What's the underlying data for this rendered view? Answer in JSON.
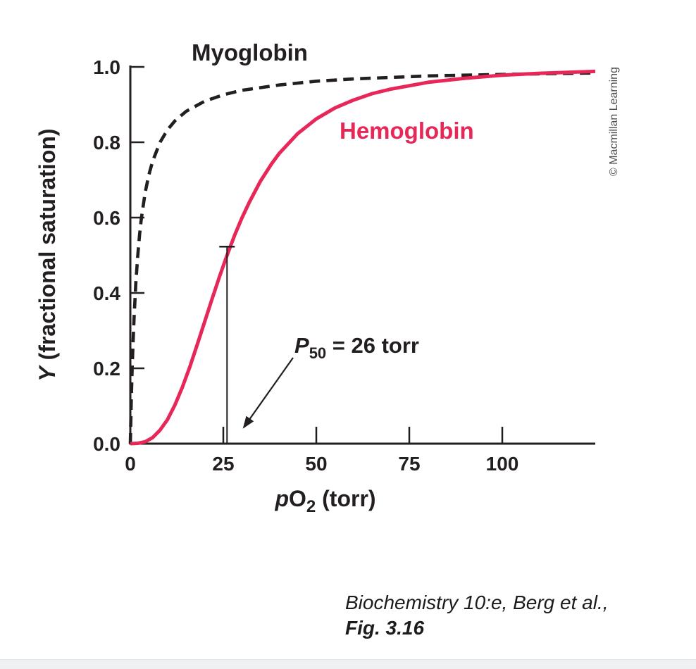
{
  "page": {
    "background": "#ffffff",
    "copyright": "© Macmillan Learning",
    "caption": {
      "line1": "Biochemistry 10:e, Berg et al.,",
      "line2": "Fig. 3.16"
    }
  },
  "labels": {
    "myoglobin": "Myoglobin",
    "hemoglobin": "Hemoglobin",
    "ylabel_italic": "Y",
    "ylabel_rest": " (fractional saturation)",
    "xlabel_italic": "p",
    "xlabel_main": "O",
    "xlabel_sub": "2",
    "xlabel_rest": " (torr)",
    "p50_italic": "P",
    "p50_sub": "50",
    "p50_rest": " = 26 torr"
  },
  "chart_data": {
    "type": "line",
    "xlabel": "pO2 (torr)",
    "ylabel": "Y (fractional saturation)",
    "xlim": [
      0,
      125
    ],
    "ylim": [
      0,
      1.0
    ],
    "x_ticks": [
      0,
      25,
      50,
      75,
      100
    ],
    "y_ticks": [
      0,
      0.2,
      0.4,
      0.6,
      0.8,
      1.0
    ],
    "grid": false,
    "legend": "inline-curve-labels",
    "annotation": {
      "label": "P50 = 26 torr",
      "x": 26,
      "y": 0.5
    },
    "series": [
      {
        "name": "Myoglobin",
        "color": "#231f20",
        "line_style": "dashed",
        "points": [
          [
            0,
            0
          ],
          [
            0.25,
            0.111
          ],
          [
            0.5,
            0.2
          ],
          [
            0.75,
            0.273
          ],
          [
            1,
            0.333
          ],
          [
            1.5,
            0.429
          ],
          [
            2,
            0.5
          ],
          [
            2.5,
            0.556
          ],
          [
            3,
            0.6
          ],
          [
            4,
            0.667
          ],
          [
            5,
            0.714
          ],
          [
            6,
            0.75
          ],
          [
            8,
            0.8
          ],
          [
            10,
            0.833
          ],
          [
            12,
            0.857
          ],
          [
            15,
            0.882
          ],
          [
            20,
            0.909
          ],
          [
            25,
            0.926
          ],
          [
            30,
            0.938
          ],
          [
            40,
            0.952
          ],
          [
            50,
            0.962
          ],
          [
            60,
            0.968
          ],
          [
            80,
            0.976
          ],
          [
            100,
            0.98
          ],
          [
            125,
            0.984
          ]
        ]
      },
      {
        "name": "Hemoglobin",
        "color": "#e72757",
        "line_style": "solid",
        "points": [
          [
            0,
            0
          ],
          [
            2,
            0.001
          ],
          [
            4,
            0.005
          ],
          [
            6,
            0.016
          ],
          [
            8,
            0.036
          ],
          [
            10,
            0.064
          ],
          [
            12,
            0.103
          ],
          [
            14,
            0.15
          ],
          [
            16,
            0.204
          ],
          [
            18,
            0.263
          ],
          [
            20,
            0.324
          ],
          [
            22,
            0.385
          ],
          [
            24,
            0.444
          ],
          [
            26,
            0.5
          ],
          [
            28,
            0.552
          ],
          [
            30,
            0.599
          ],
          [
            32,
            0.641
          ],
          [
            35,
            0.697
          ],
          [
            38,
            0.743
          ],
          [
            40,
            0.77
          ],
          [
            45,
            0.823
          ],
          [
            50,
            0.862
          ],
          [
            55,
            0.891
          ],
          [
            60,
            0.912
          ],
          [
            65,
            0.929
          ],
          [
            70,
            0.941
          ],
          [
            80,
            0.959
          ],
          [
            90,
            0.97
          ],
          [
            100,
            0.978
          ],
          [
            110,
            0.983
          ],
          [
            125,
            0.988
          ]
        ]
      }
    ]
  }
}
